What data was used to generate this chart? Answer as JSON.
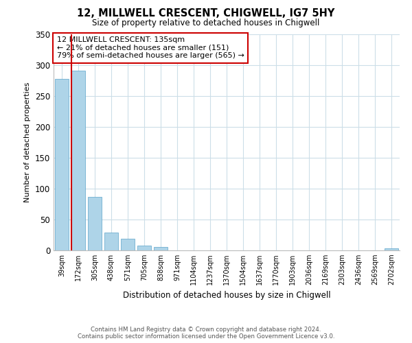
{
  "title": "12, MILLWELL CRESCENT, CHIGWELL, IG7 5HY",
  "subtitle": "Size of property relative to detached houses in Chigwell",
  "bar_labels": [
    "39sqm",
    "172sqm",
    "305sqm",
    "438sqm",
    "571sqm",
    "705sqm",
    "838sqm",
    "971sqm",
    "1104sqm",
    "1237sqm",
    "1370sqm",
    "1504sqm",
    "1637sqm",
    "1770sqm",
    "1903sqm",
    "2036sqm",
    "2169sqm",
    "2303sqm",
    "2436sqm",
    "2569sqm",
    "2702sqm"
  ],
  "bar_values": [
    278,
    291,
    87,
    29,
    19,
    8,
    6,
    0,
    0,
    0,
    0,
    0,
    0,
    0,
    0,
    0,
    0,
    0,
    0,
    0,
    3
  ],
  "bar_color": "#aed4e8",
  "bar_edgecolor": "#5ba3c9",
  "red_line_x": 1.0,
  "red_line_color": "#cc0000",
  "ylabel": "Number of detached properties",
  "xlabel": "Distribution of detached houses by size in Chigwell",
  "ylim": [
    0,
    350
  ],
  "yticks": [
    0,
    50,
    100,
    150,
    200,
    250,
    300,
    350
  ],
  "annotation_title": "12 MILLWELL CRESCENT: 135sqm",
  "annotation_line1": "← 21% of detached houses are smaller (151)",
  "annotation_line2": "79% of semi-detached houses are larger (565) →",
  "footer_line1": "Contains HM Land Registry data © Crown copyright and database right 2024.",
  "footer_line2": "Contains public sector information licensed under the Open Government Licence v3.0.",
  "background_color": "#ffffff",
  "grid_color": "#ccdee8"
}
